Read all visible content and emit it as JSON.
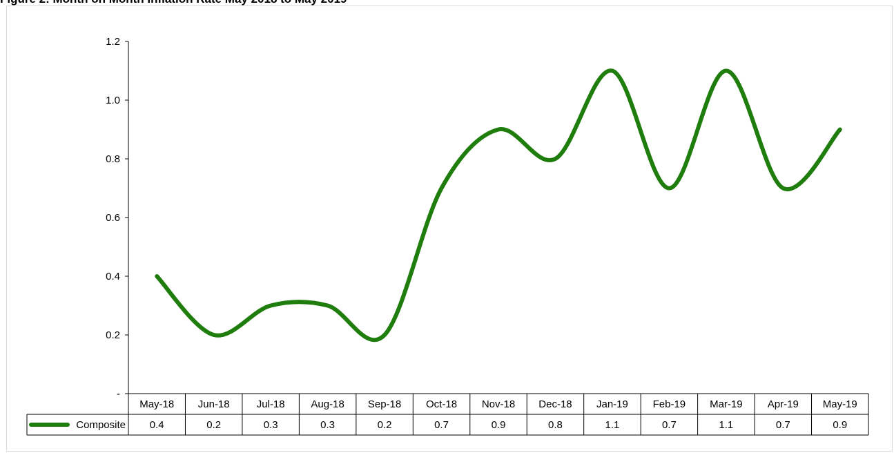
{
  "figure_title": "Figure 2: Month on Month Inflation Rate May 2018 to May 2019",
  "chart_data": {
    "type": "line",
    "title": "Figure 2: Month on Month Inflation Rate May 2018 to May 2019",
    "xlabel": "",
    "ylabel": "",
    "ylim": [
      0,
      1.2
    ],
    "y_ticks": [
      "-",
      "0.2",
      "0.4",
      "0.6",
      "0.8",
      "1.0",
      "1.2"
    ],
    "grid": false,
    "legend_position": "data-table",
    "line_color": "#1e7d0c",
    "categories": [
      "May-18",
      "Jun-18",
      "Jul-18",
      "Aug-18",
      "Sep-18",
      "Oct-18",
      "Nov-18",
      "Dec-18",
      "Jan-19",
      "Feb-19",
      "Mar-19",
      "Apr-19",
      "May-19"
    ],
    "series": [
      {
        "name": "Composite",
        "values": [
          0.4,
          0.2,
          0.3,
          0.3,
          0.2,
          0.7,
          0.9,
          0.8,
          1.1,
          0.7,
          1.1,
          0.7,
          0.9
        ],
        "value_labels": [
          "0.4",
          "0.2",
          "0.3",
          "0.3",
          "0.2",
          "0.7",
          "0.9",
          "0.8",
          "1.1",
          "0.7",
          "1.1",
          "0.7",
          "0.9"
        ]
      }
    ]
  }
}
